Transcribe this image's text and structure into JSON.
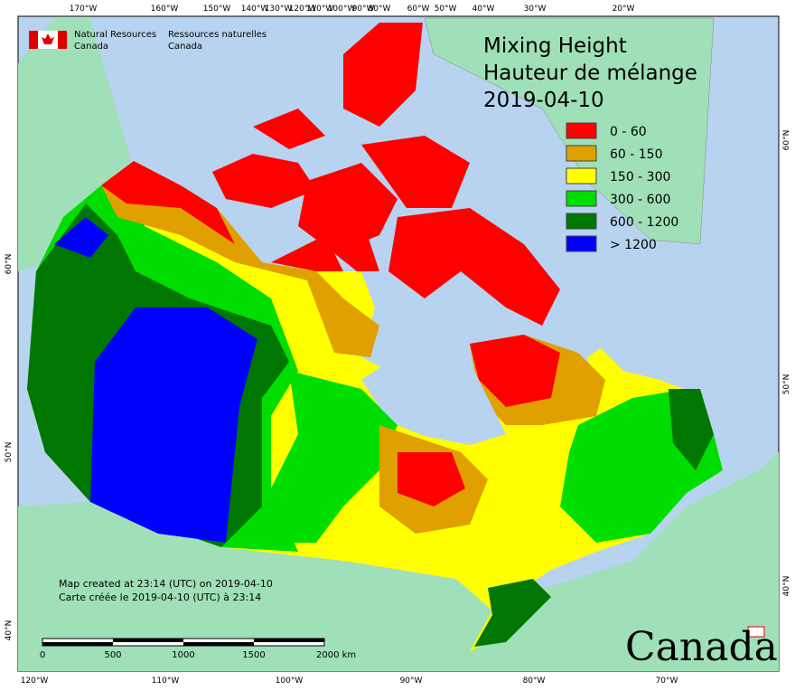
{
  "header": {
    "title_lines": [
      "Mixing Height",
      "Hauteur de mélange",
      "2019-04-10"
    ]
  },
  "agency": {
    "en": [
      "Natural Resources",
      "Canada"
    ],
    "fr": [
      "Ressources naturelles",
      "Canada"
    ]
  },
  "legend": [
    {
      "label": "0 - 60",
      "color": "#ff0000"
    },
    {
      "label": "60 - 150",
      "color": "#e0a000"
    },
    {
      "label": "150 - 300",
      "color": "#ffff00"
    },
    {
      "label": "300 - 600",
      "color": "#00dd00"
    },
    {
      "label": "600 - 1200",
      "color": "#007700"
    },
    {
      "label": "> 1200",
      "color": "#0000ff"
    }
  ],
  "graticule": {
    "top": [
      "170°W",
      "160°W",
      "150°W",
      "140°W",
      "130°W",
      "120°W",
      "110°W",
      "100°W",
      "90°W",
      "80°W",
      "60°W",
      "50°W",
      "40°W",
      "30°W",
      "20°W"
    ],
    "bottom": [
      "120°W",
      "110°W",
      "100°W",
      "90°W",
      "80°W",
      "70°W"
    ],
    "left": [
      "60°N",
      "50°N",
      "40°N"
    ],
    "right": [
      "60°N",
      "50°N",
      "40°N"
    ]
  },
  "notes": [
    "Map created at 23:14 (UTC) on 2019-04-10",
    "Carte créée le 2019-04-10 (UTC) à 23:14"
  ],
  "scale_bar": {
    "labels": [
      "0",
      "500",
      "1000",
      "1500",
      "2000  km"
    ]
  },
  "wordmark": "Canada"
}
